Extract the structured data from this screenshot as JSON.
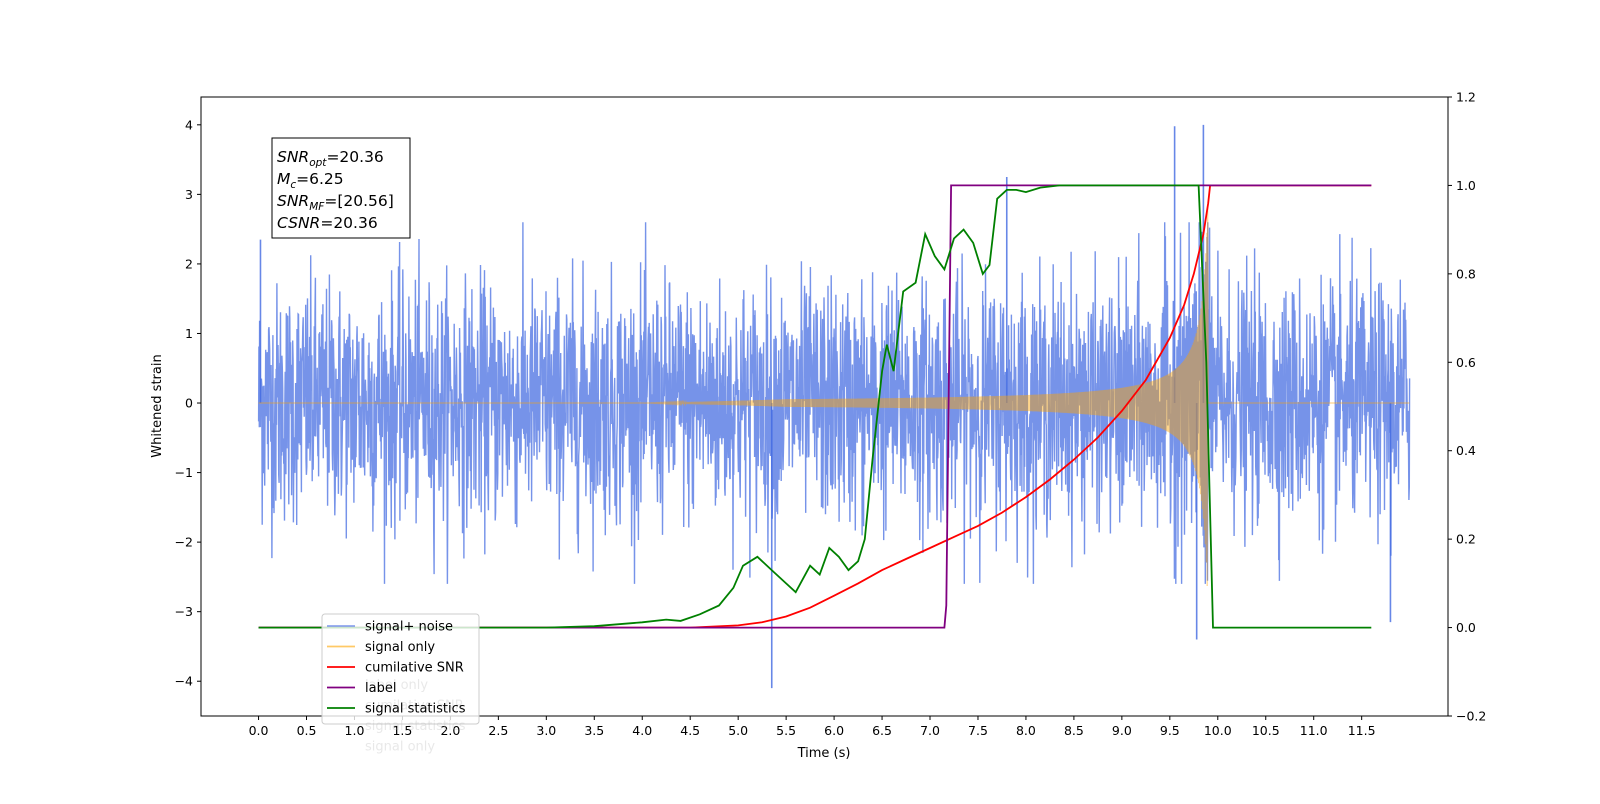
{
  "chart_data": {
    "type": "line",
    "xlabel": "Time (s)",
    "ylabel": "Whitened strain",
    "xlim": [
      -0.6,
      12.4
    ],
    "ylim": [
      -4.5,
      4.4
    ],
    "y2lim": [
      -0.2,
      1.2
    ],
    "xticks": [
      "0.0",
      "0.5",
      "1.0",
      "1.5",
      "2.0",
      "2.5",
      "3.0",
      "3.5",
      "4.0",
      "4.5",
      "5.0",
      "5.5",
      "6.0",
      "6.5",
      "7.0",
      "7.5",
      "8.0",
      "8.5",
      "9.0",
      "9.5",
      "10.0",
      "10.5",
      "11.0",
      "11.5"
    ],
    "yticks": [
      "4",
      "3",
      "2",
      "1",
      "0",
      "−1",
      "−2",
      "−3",
      "−4"
    ],
    "y2ticks": [
      "1.2",
      "1.0",
      "0.8",
      "0.6",
      "0.4",
      "0.2",
      "0.0",
      "−0.2"
    ],
    "annotation": {
      "lines": [
        {
          "main": "SNR",
          "sub": "opt",
          "rest": "=20.36"
        },
        {
          "main": "M",
          "sub": "c",
          "rest": "=6.25"
        },
        {
          "main": "SNR",
          "sub": "MF",
          "rest": "=[20.56]"
        },
        {
          "main": "CSNR",
          "sub": "",
          "rest": "=20.36"
        }
      ]
    },
    "legend": {
      "placement": "lower-left",
      "entries": [
        {
          "label": "signal+ noise",
          "color": "#4169e1"
        },
        {
          "label": "signal only",
          "color": "#ffa500"
        },
        {
          "label": "cumilative SNR",
          "color": "#ff0000"
        },
        {
          "label": "label",
          "color": "#800080"
        },
        {
          "label": "signal statistics",
          "color": "#008000"
        }
      ],
      "ghost_labels": [
        "label only",
        "cumilative SNR",
        "signal statistics",
        "signal only"
      ]
    },
    "series": [
      {
        "name": "signal+ noise",
        "axis": "left",
        "color": "#4169e1",
        "kind": "noise",
        "x_range": [
          0,
          12
        ],
        "noise_amplitude": 0.85,
        "spikes": [
          [
            0.02,
            2.35
          ],
          [
            5.35,
            -4.1
          ],
          [
            7.8,
            3.25
          ],
          [
            9.55,
            3.98
          ],
          [
            9.85,
            4.0
          ],
          [
            9.78,
            -3.4
          ],
          [
            11.8,
            -3.15
          ]
        ]
      },
      {
        "name": "signal only",
        "axis": "left",
        "color": "#ffa500",
        "kind": "chirp",
        "x_range": [
          0,
          12
        ],
        "merger_time": 9.9,
        "envelope_start": 5.0,
        "peak_amplitude": 3.1
      },
      {
        "name": "cumilative SNR",
        "axis": "right",
        "color": "#ff0000",
        "x": [
          0,
          4.5,
          5.0,
          5.25,
          5.5,
          5.75,
          6.0,
          6.25,
          6.5,
          6.75,
          7.0,
          7.25,
          7.5,
          7.75,
          8.0,
          8.25,
          8.5,
          8.75,
          9.0,
          9.25,
          9.5,
          9.65,
          9.75,
          9.85,
          9.9,
          9.92,
          11.6
        ],
        "y": [
          0,
          0,
          0.005,
          0.012,
          0.025,
          0.045,
          0.072,
          0.1,
          0.13,
          0.155,
          0.18,
          0.205,
          0.23,
          0.26,
          0.295,
          0.335,
          0.38,
          0.43,
          0.49,
          0.56,
          0.655,
          0.73,
          0.8,
          0.89,
          0.96,
          1.0,
          1.0
        ]
      },
      {
        "name": "label",
        "axis": "right",
        "color": "#800080",
        "x": [
          0,
          7.15,
          7.17,
          7.22,
          11.6
        ],
        "y": [
          0,
          0,
          0.05,
          1.0,
          1.0
        ]
      },
      {
        "name": "signal statistics",
        "axis": "right",
        "color": "#008000",
        "x": [
          0,
          3.0,
          3.5,
          4.0,
          4.25,
          4.4,
          4.6,
          4.8,
          4.95,
          5.05,
          5.2,
          5.35,
          5.5,
          5.6,
          5.75,
          5.85,
          5.95,
          6.05,
          6.15,
          6.25,
          6.32,
          6.4,
          6.5,
          6.55,
          6.62,
          6.72,
          6.85,
          6.95,
          7.05,
          7.15,
          7.25,
          7.35,
          7.45,
          7.55,
          7.62,
          7.7,
          7.8,
          7.9,
          8.0,
          8.15,
          8.35,
          8.6,
          9.0,
          9.5,
          9.8,
          9.88,
          9.95,
          11.6
        ],
        "y": [
          0,
          0,
          0.003,
          0.012,
          0.018,
          0.015,
          0.03,
          0.05,
          0.09,
          0.14,
          0.16,
          0.13,
          0.1,
          0.08,
          0.14,
          0.12,
          0.18,
          0.16,
          0.13,
          0.15,
          0.2,
          0.38,
          0.58,
          0.64,
          0.58,
          0.76,
          0.78,
          0.89,
          0.84,
          0.81,
          0.88,
          0.9,
          0.87,
          0.8,
          0.82,
          0.97,
          0.99,
          0.99,
          0.985,
          0.995,
          1.0,
          1.0,
          1.0,
          1.0,
          1.0,
          0.6,
          0.0,
          0.0
        ]
      }
    ]
  }
}
